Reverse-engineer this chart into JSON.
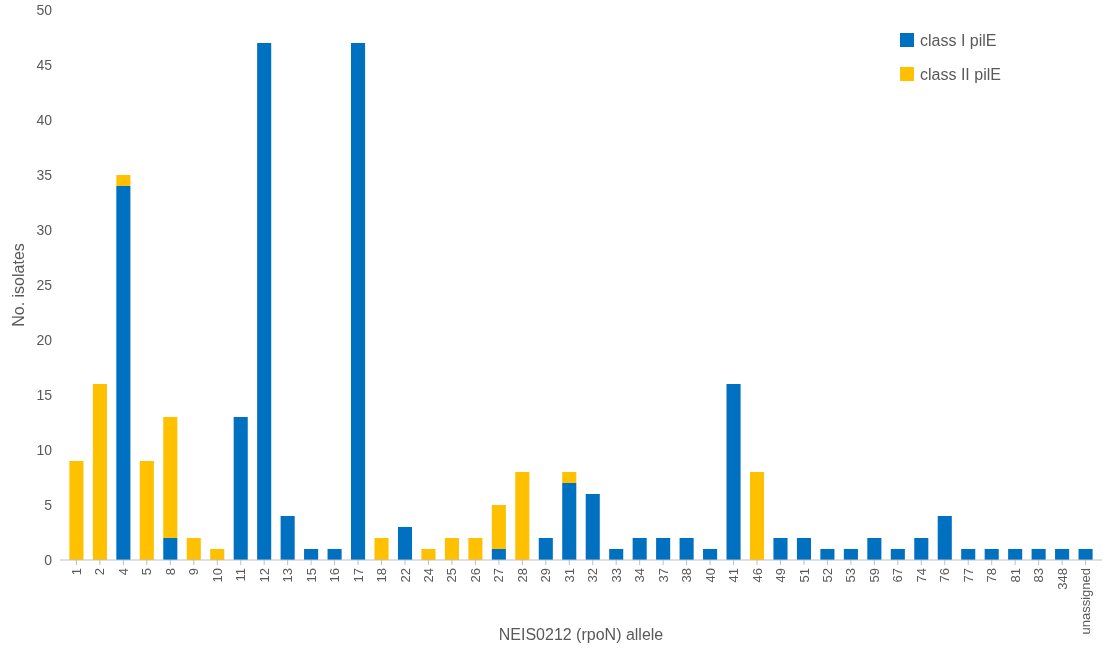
{
  "chart_data": {
    "type": "bar",
    "stacked": true,
    "xlabel": "NEIS0212 (rpoN) allele",
    "ylabel": "No. isolates",
    "categories": [
      "1",
      "2",
      "4",
      "5",
      "8",
      "9",
      "10",
      "11",
      "12",
      "13",
      "15",
      "16",
      "17",
      "18",
      "22",
      "24",
      "25",
      "26",
      "27",
      "28",
      "29",
      "31",
      "32",
      "33",
      "34",
      "37",
      "38",
      "40",
      "41",
      "46",
      "49",
      "51",
      "52",
      "53",
      "59",
      "67",
      "74",
      "76",
      "77",
      "78",
      "81",
      "83",
      "348",
      "unassigned"
    ],
    "series": [
      {
        "name": "class I pilE",
        "color": "#0070c0",
        "values": [
          0,
          0,
          34,
          0,
          2,
          0,
          0,
          13,
          47,
          4,
          1,
          1,
          47,
          0,
          3,
          0,
          0,
          0,
          1,
          0,
          2,
          7,
          6,
          1,
          2,
          2,
          2,
          1,
          16,
          0,
          2,
          2,
          1,
          1,
          2,
          1,
          2,
          4,
          1,
          1,
          1,
          1,
          1,
          1
        ]
      },
      {
        "name": "class II pilE",
        "color": "#ffc000",
        "values": [
          9,
          16,
          1,
          9,
          11,
          2,
          1,
          0,
          0,
          0,
          0,
          0,
          0,
          2,
          0,
          1,
          2,
          2,
          4,
          8,
          0,
          1,
          0,
          0,
          0,
          0,
          0,
          0,
          0,
          8,
          0,
          0,
          0,
          0,
          0,
          0,
          0,
          0,
          0,
          0,
          0,
          0,
          0,
          0
        ]
      }
    ],
    "ylim": [
      0,
      50
    ],
    "yticks": [
      0,
      5,
      10,
      15,
      20,
      25,
      30,
      35,
      40,
      45,
      50
    ],
    "legend": "top right"
  }
}
